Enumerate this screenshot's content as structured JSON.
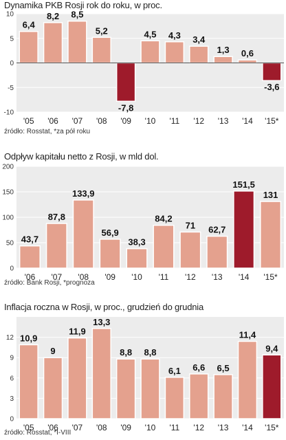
{
  "colors": {
    "bar": "#e4a18e",
    "bar_highlight": "#9e1b2b",
    "bar_stroke": "#ffffff",
    "plot_bg": "#ececec",
    "grid": "#ffffff",
    "zero_line": "#555555"
  },
  "chart_data": [
    {
      "type": "bar",
      "title": "Dynamika PKB Rosji rok do roku, w proc.",
      "source": "źródło: Rosstat, *za pół roku",
      "categories": [
        "'05",
        "'06",
        "'07",
        "'08",
        "'09",
        "'10",
        "'11",
        "'12",
        "'13",
        "'14",
        "'15*"
      ],
      "values": [
        6.4,
        8.2,
        8.5,
        5.2,
        -7.8,
        4.5,
        4.3,
        3.4,
        1.3,
        0.6,
        -3.6
      ],
      "value_labels": [
        "6,4",
        "8,2",
        "8,5",
        "5,2",
        "-7,8",
        "4,5",
        "4,3",
        "3,4",
        "1,3",
        "0,6",
        "-3,6"
      ],
      "highlight": [
        4,
        10
      ],
      "ylim": [
        -10,
        10
      ],
      "yticks": [
        -10,
        -5,
        0,
        5,
        10
      ],
      "ytick_labels": [
        "-10",
        "-5",
        "0",
        "5",
        "10"
      ],
      "grid": true
    },
    {
      "type": "bar",
      "title": "Odpływ kapitału netto z Rosji, w mld dol.",
      "source": "źródło: Bank Rosji, *prognoza",
      "categories": [
        "'06",
        "'07",
        "'08",
        "'09",
        "'10",
        "'11",
        "'12",
        "'13",
        "'14",
        "'15*"
      ],
      "values": [
        43.7,
        87.8,
        133.9,
        56.9,
        38.3,
        84.2,
        71,
        62.7,
        151.5,
        131
      ],
      "value_labels": [
        "43,7",
        "87,8",
        "133,9",
        "56,9",
        "38,3",
        "84,2",
        "71",
        "62,7",
        "151,5",
        "131"
      ],
      "highlight": [
        8
      ],
      "ylim": [
        0,
        200
      ],
      "yticks": [
        0,
        50,
        100,
        150,
        200
      ],
      "ytick_labels": [
        "0",
        "50",
        "100",
        "150",
        "200"
      ],
      "grid": true
    },
    {
      "type": "bar",
      "title": "Inflacja roczna w Rosji,  w proc., grudzień do grudnia",
      "source": "źródło: Rosstat, *I-VIII",
      "categories": [
        "'05",
        "'06",
        "'07",
        "'08",
        "'09",
        "'10",
        "'11",
        "'12",
        "'13",
        "'14",
        "'15*"
      ],
      "values": [
        10.9,
        9,
        11.9,
        13.3,
        8.8,
        8.8,
        6.1,
        6.6,
        6.5,
        11.4,
        9.4
      ],
      "value_labels": [
        "10,9",
        "9",
        "11,9",
        "13,3",
        "8,8",
        "8,8",
        "6,1",
        "6,6",
        "6,5",
        "11,4",
        "9,4"
      ],
      "highlight": [
        10
      ],
      "ylim": [
        0,
        15
      ],
      "yticks": [
        0,
        3,
        6,
        9,
        12
      ],
      "ytick_labels": [
        "0",
        "3",
        "6",
        "9",
        "12"
      ],
      "grid": true
    }
  ]
}
